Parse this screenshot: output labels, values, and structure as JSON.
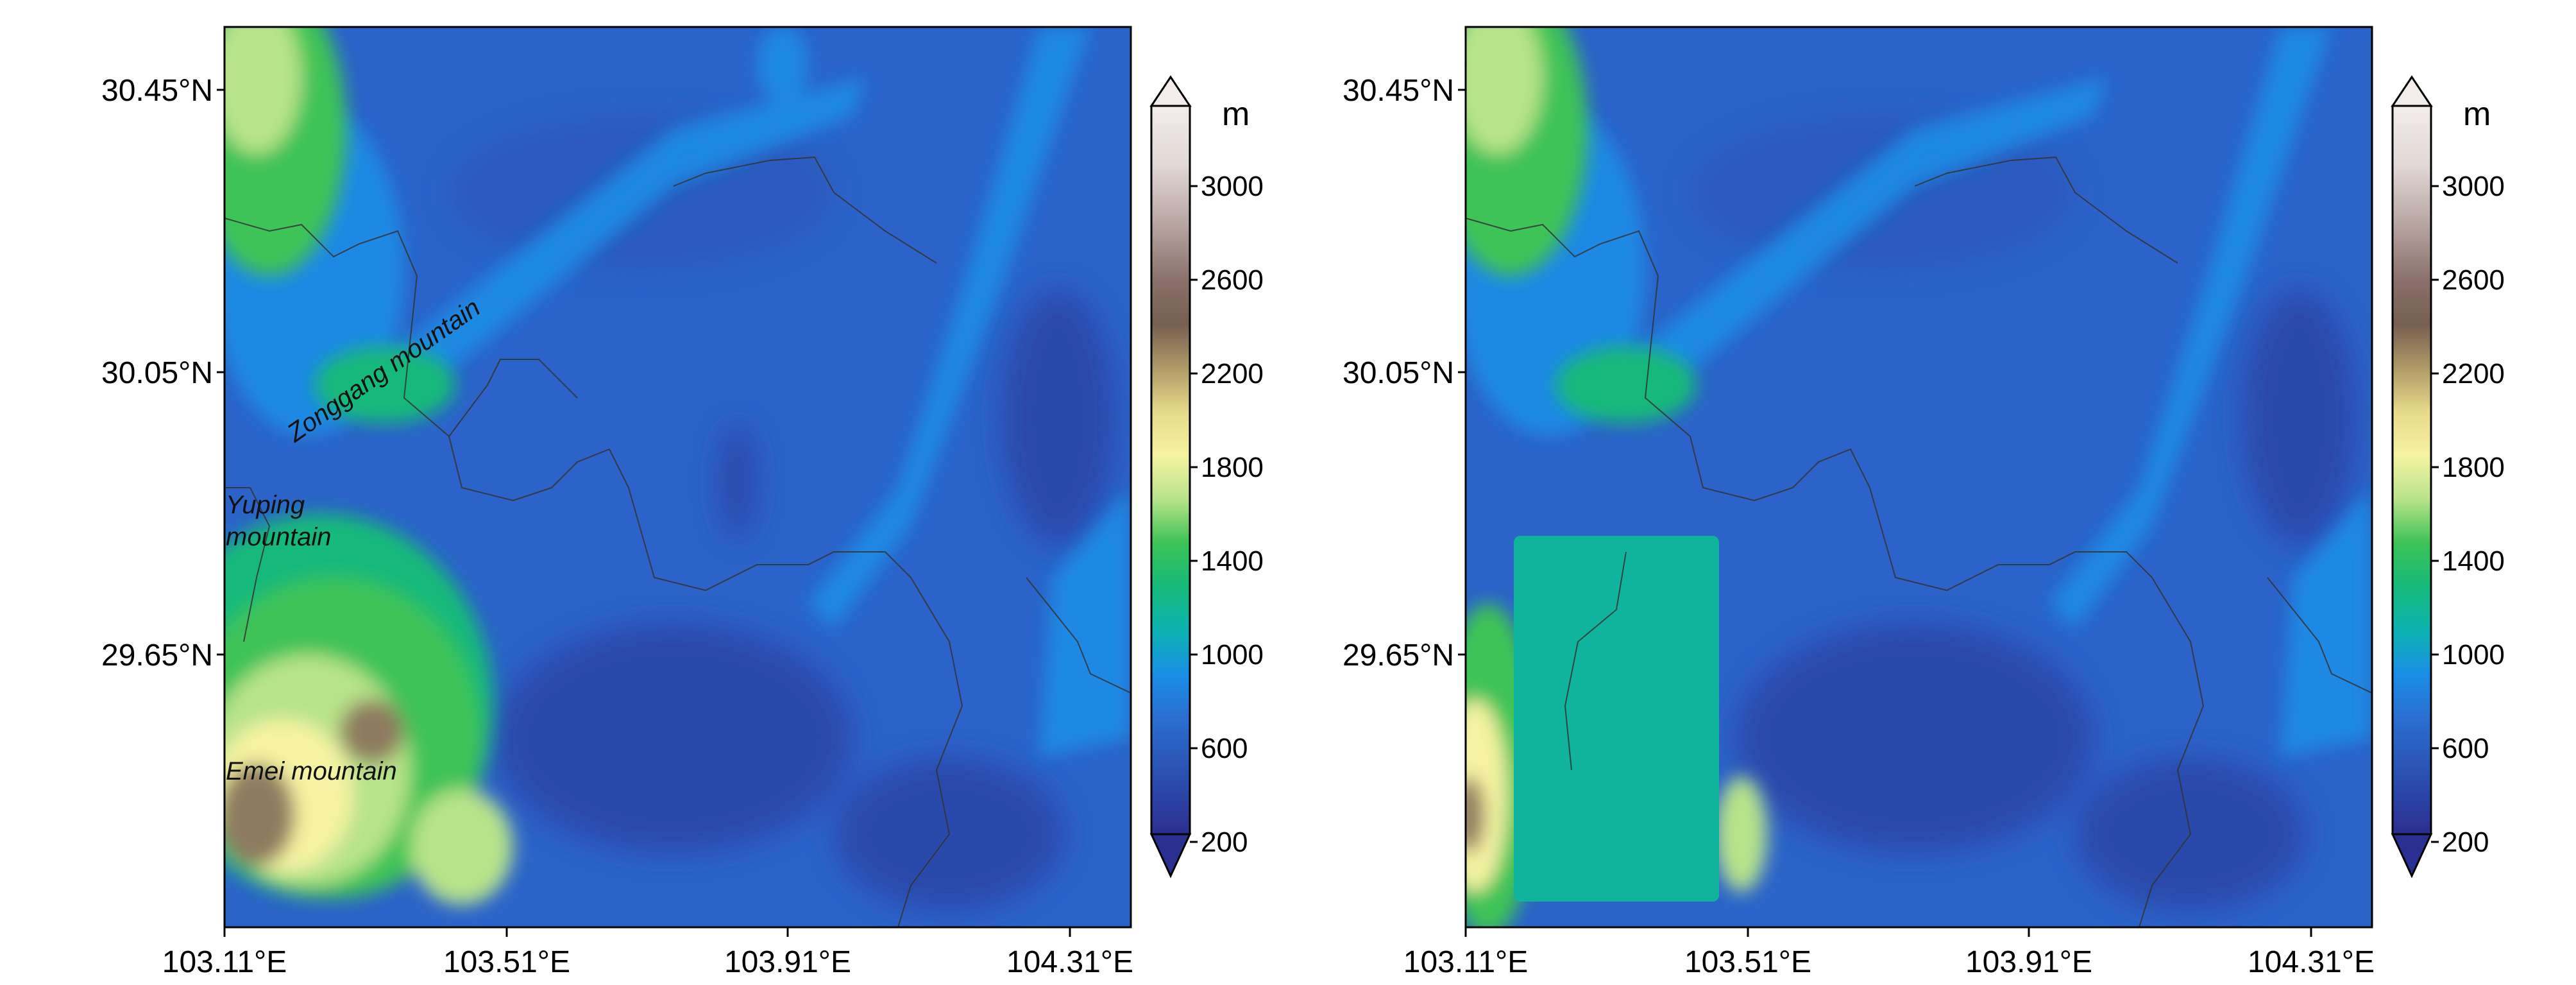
{
  "colorbar": {
    "unit": "m",
    "tick_labels": [
      "3000",
      "2600",
      "2200",
      "1800",
      "1400",
      "1000",
      "600",
      "200"
    ],
    "palette": [
      "#2b2f8f",
      "#2b4fb0",
      "#2a6fd0",
      "#1a8ee6",
      "#0aa3e0",
      "#0bb3b0",
      "#16b97a",
      "#3cc356",
      "#7ccf5e",
      "#b8e38a",
      "#e7f3a6",
      "#f6f3a3",
      "#e6d98a",
      "#cbbc77",
      "#b09a68",
      "#8f7a5e",
      "#765f50",
      "#8a706a",
      "#a38c88",
      "#b9a7a4",
      "#cfc1bf",
      "#e2d8d6",
      "#f2ecea"
    ]
  },
  "panels": [
    {
      "id": "left",
      "y_ticks": [
        "30.45°N",
        "30.05°N",
        "29.65°N"
      ],
      "x_ticks": [
        "103.11°E",
        "103.51°E",
        "103.91°E",
        "104.31°E"
      ],
      "annotations": [
        "Zonggang mountain",
        "Yuping",
        "mountain",
        "Emei mountain"
      ]
    },
    {
      "id": "right",
      "y_ticks": [
        "30.45°N",
        "30.05°N",
        "29.65°N"
      ],
      "x_ticks": [
        "103.11°E",
        "103.51°E",
        "103.91°E",
        "104.31°E"
      ],
      "annotations": []
    }
  ],
  "colors": {
    "background_blue": "#2b63c8",
    "low_blue": "#2b48ac",
    "mid_blue": "#1a8ee6",
    "box_teal": "#10b39c"
  }
}
